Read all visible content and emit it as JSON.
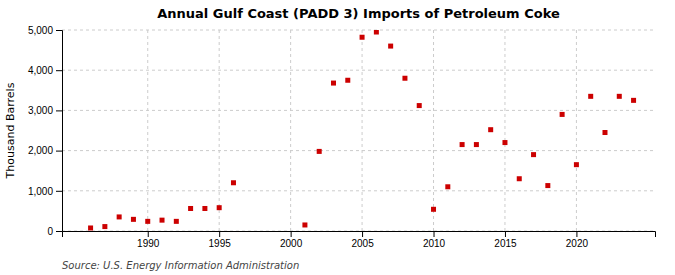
{
  "chart_data": {
    "type": "scatter",
    "title": "Annual Gulf Coast (PADD 3) Imports of Petroleum Coke",
    "ylabel": "Thousand Barrels",
    "source": "Source: U.S. Energy Information Administration",
    "x": [
      1986,
      1987,
      1988,
      1989,
      1990,
      1991,
      1992,
      1993,
      1994,
      1995,
      1996,
      2001,
      2002,
      2003,
      2004,
      2005,
      2006,
      2007,
      2008,
      2009,
      2010,
      2011,
      2012,
      2013,
      2014,
      2015,
      2016,
      2017,
      2018,
      2019,
      2020,
      2021,
      2022,
      2023,
      2024
    ],
    "values": [
      75,
      110,
      350,
      290,
      240,
      270,
      240,
      560,
      560,
      580,
      1200,
      150,
      1980,
      3680,
      3750,
      4820,
      4950,
      4600,
      3800,
      3120,
      540,
      1100,
      2150,
      2150,
      2520,
      2200,
      1300,
      1900,
      1130,
      2900,
      1650,
      3350,
      2450,
      3350,
      3250
    ],
    "color": "#cc0000",
    "marker": "square",
    "xlim": [
      1984,
      2025.5
    ],
    "xticks": [
      1990,
      1995,
      2000,
      2005,
      2010,
      2015,
      2020
    ],
    "ylim": [
      0,
      5000
    ],
    "yticks": [
      0,
      {
        "value": 1000,
        "label": "1,000"
      },
      {
        "value": 2000,
        "label": "2,000"
      },
      {
        "value": 3000,
        "label": "3,000"
      },
      {
        "value": 4000,
        "label": "4,000"
      },
      {
        "value": 5000,
        "label": "5,000"
      }
    ],
    "grid": true
  }
}
